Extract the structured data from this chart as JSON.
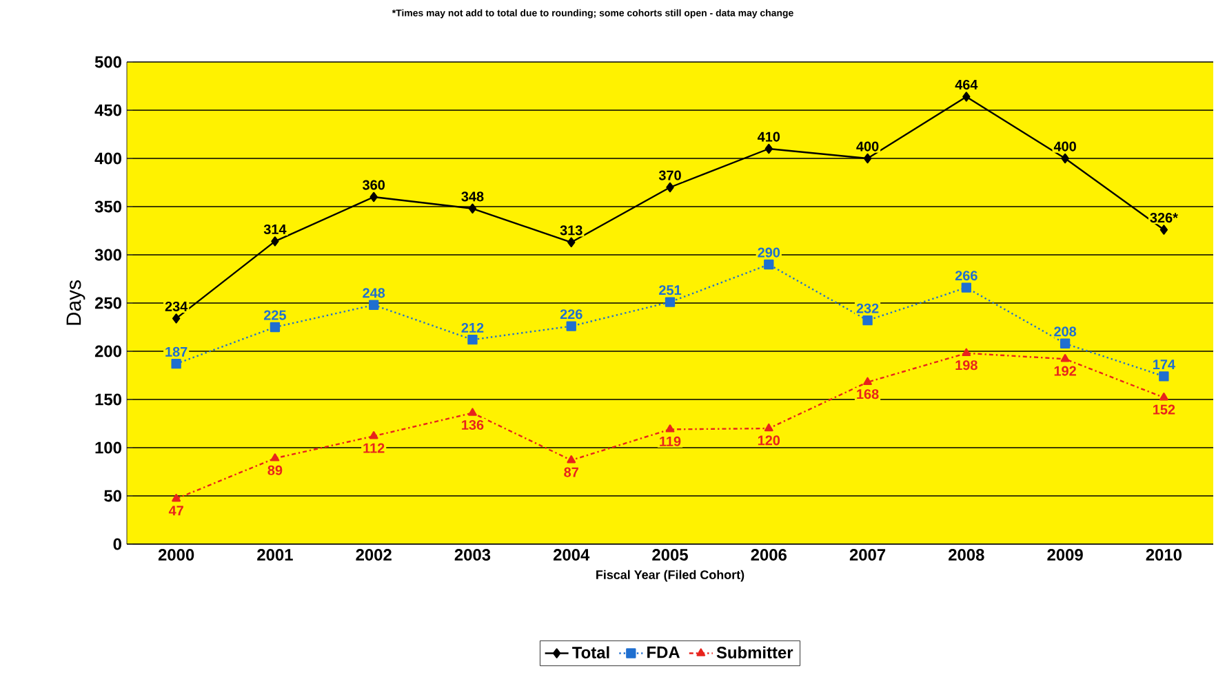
{
  "chart_data": {
    "type": "line",
    "xlabel": "Fiscal Year (Filed Cohort)",
    "ylabel": "Days",
    "annotations": [
      "*Times may not add to total due to rounding; some cohorts still open - data may change"
    ],
    "categories": [
      "2000",
      "2001",
      "2002",
      "2003",
      "2004",
      "2005",
      "2006",
      "2007",
      "2008",
      "2009",
      "2010"
    ],
    "series": [
      {
        "name": "Total",
        "color": "#000000",
        "marker": "diamond",
        "line_style": "solid",
        "values": [
          234,
          314,
          360,
          348,
          313,
          370,
          410,
          400,
          464,
          400,
          326
        ],
        "value_labels": [
          "234",
          "314",
          "360",
          "348",
          "313",
          "370",
          "410",
          "400",
          "464",
          "400",
          "326*"
        ]
      },
      {
        "name": "FDA",
        "color": "#1f6fd0",
        "marker": "square",
        "line_style": "dotted",
        "values": [
          187,
          225,
          248,
          212,
          226,
          251,
          290,
          232,
          266,
          208,
          174
        ],
        "value_labels": [
          "187",
          "225",
          "248",
          "212",
          "226",
          "251",
          "290",
          "232",
          "266",
          "208",
          "174"
        ]
      },
      {
        "name": "Submitter",
        "color": "#e8231c",
        "marker": "triangle",
        "line_style": "dashed",
        "values": [
          47,
          89,
          112,
          136,
          87,
          119,
          120,
          168,
          198,
          192,
          152
        ],
        "value_labels": [
          "47",
          "89",
          "112",
          "136",
          "87",
          "119",
          "120",
          "168",
          "198",
          "192",
          "152"
        ]
      }
    ],
    "ylim": [
      0,
      500
    ],
    "yticks": [
      0,
      50,
      100,
      150,
      200,
      250,
      300,
      350,
      400,
      450,
      500
    ],
    "grid": "y",
    "legend": "bottom"
  }
}
